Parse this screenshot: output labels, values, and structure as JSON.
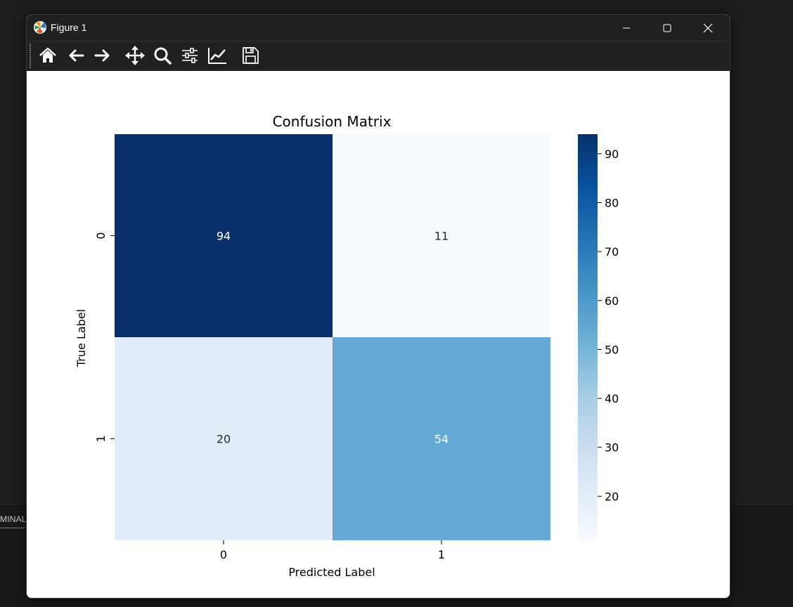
{
  "background": {
    "panel_tab_label": "MINAL"
  },
  "window": {
    "title": "Figure 1",
    "app_icon": "matplotlib-icon",
    "controls": [
      "minimize-icon",
      "maximize-icon",
      "close-icon"
    ]
  },
  "toolbar": {
    "tools": [
      "home-icon",
      "back-arrow-icon",
      "forward-arrow-icon",
      "pan-icon",
      "zoom-icon",
      "configure-subplots-icon",
      "edit-axis-icon",
      "save-icon"
    ]
  },
  "chart_data": {
    "type": "heatmap",
    "title": "Confusion Matrix",
    "xlabel": "Predicted Label",
    "ylabel": "True Label",
    "x_categories": [
      "0",
      "1"
    ],
    "y_categories": [
      "0",
      "1"
    ],
    "values": [
      [
        94,
        11
      ],
      [
        20,
        54
      ]
    ],
    "annotations": [
      "94",
      "11",
      "20",
      "54"
    ],
    "colormap": "Blues",
    "colors": [
      "#08306b",
      "#f7fbff",
      "#e1edf8",
      "#64aad5"
    ],
    "colorbar": {
      "range": [
        11,
        94
      ],
      "ticks": [
        20,
        30,
        40,
        50,
        60,
        70,
        80,
        90
      ],
      "tick_labels": [
        "20",
        "30",
        "40",
        "50",
        "60",
        "70",
        "80",
        "90"
      ]
    }
  }
}
